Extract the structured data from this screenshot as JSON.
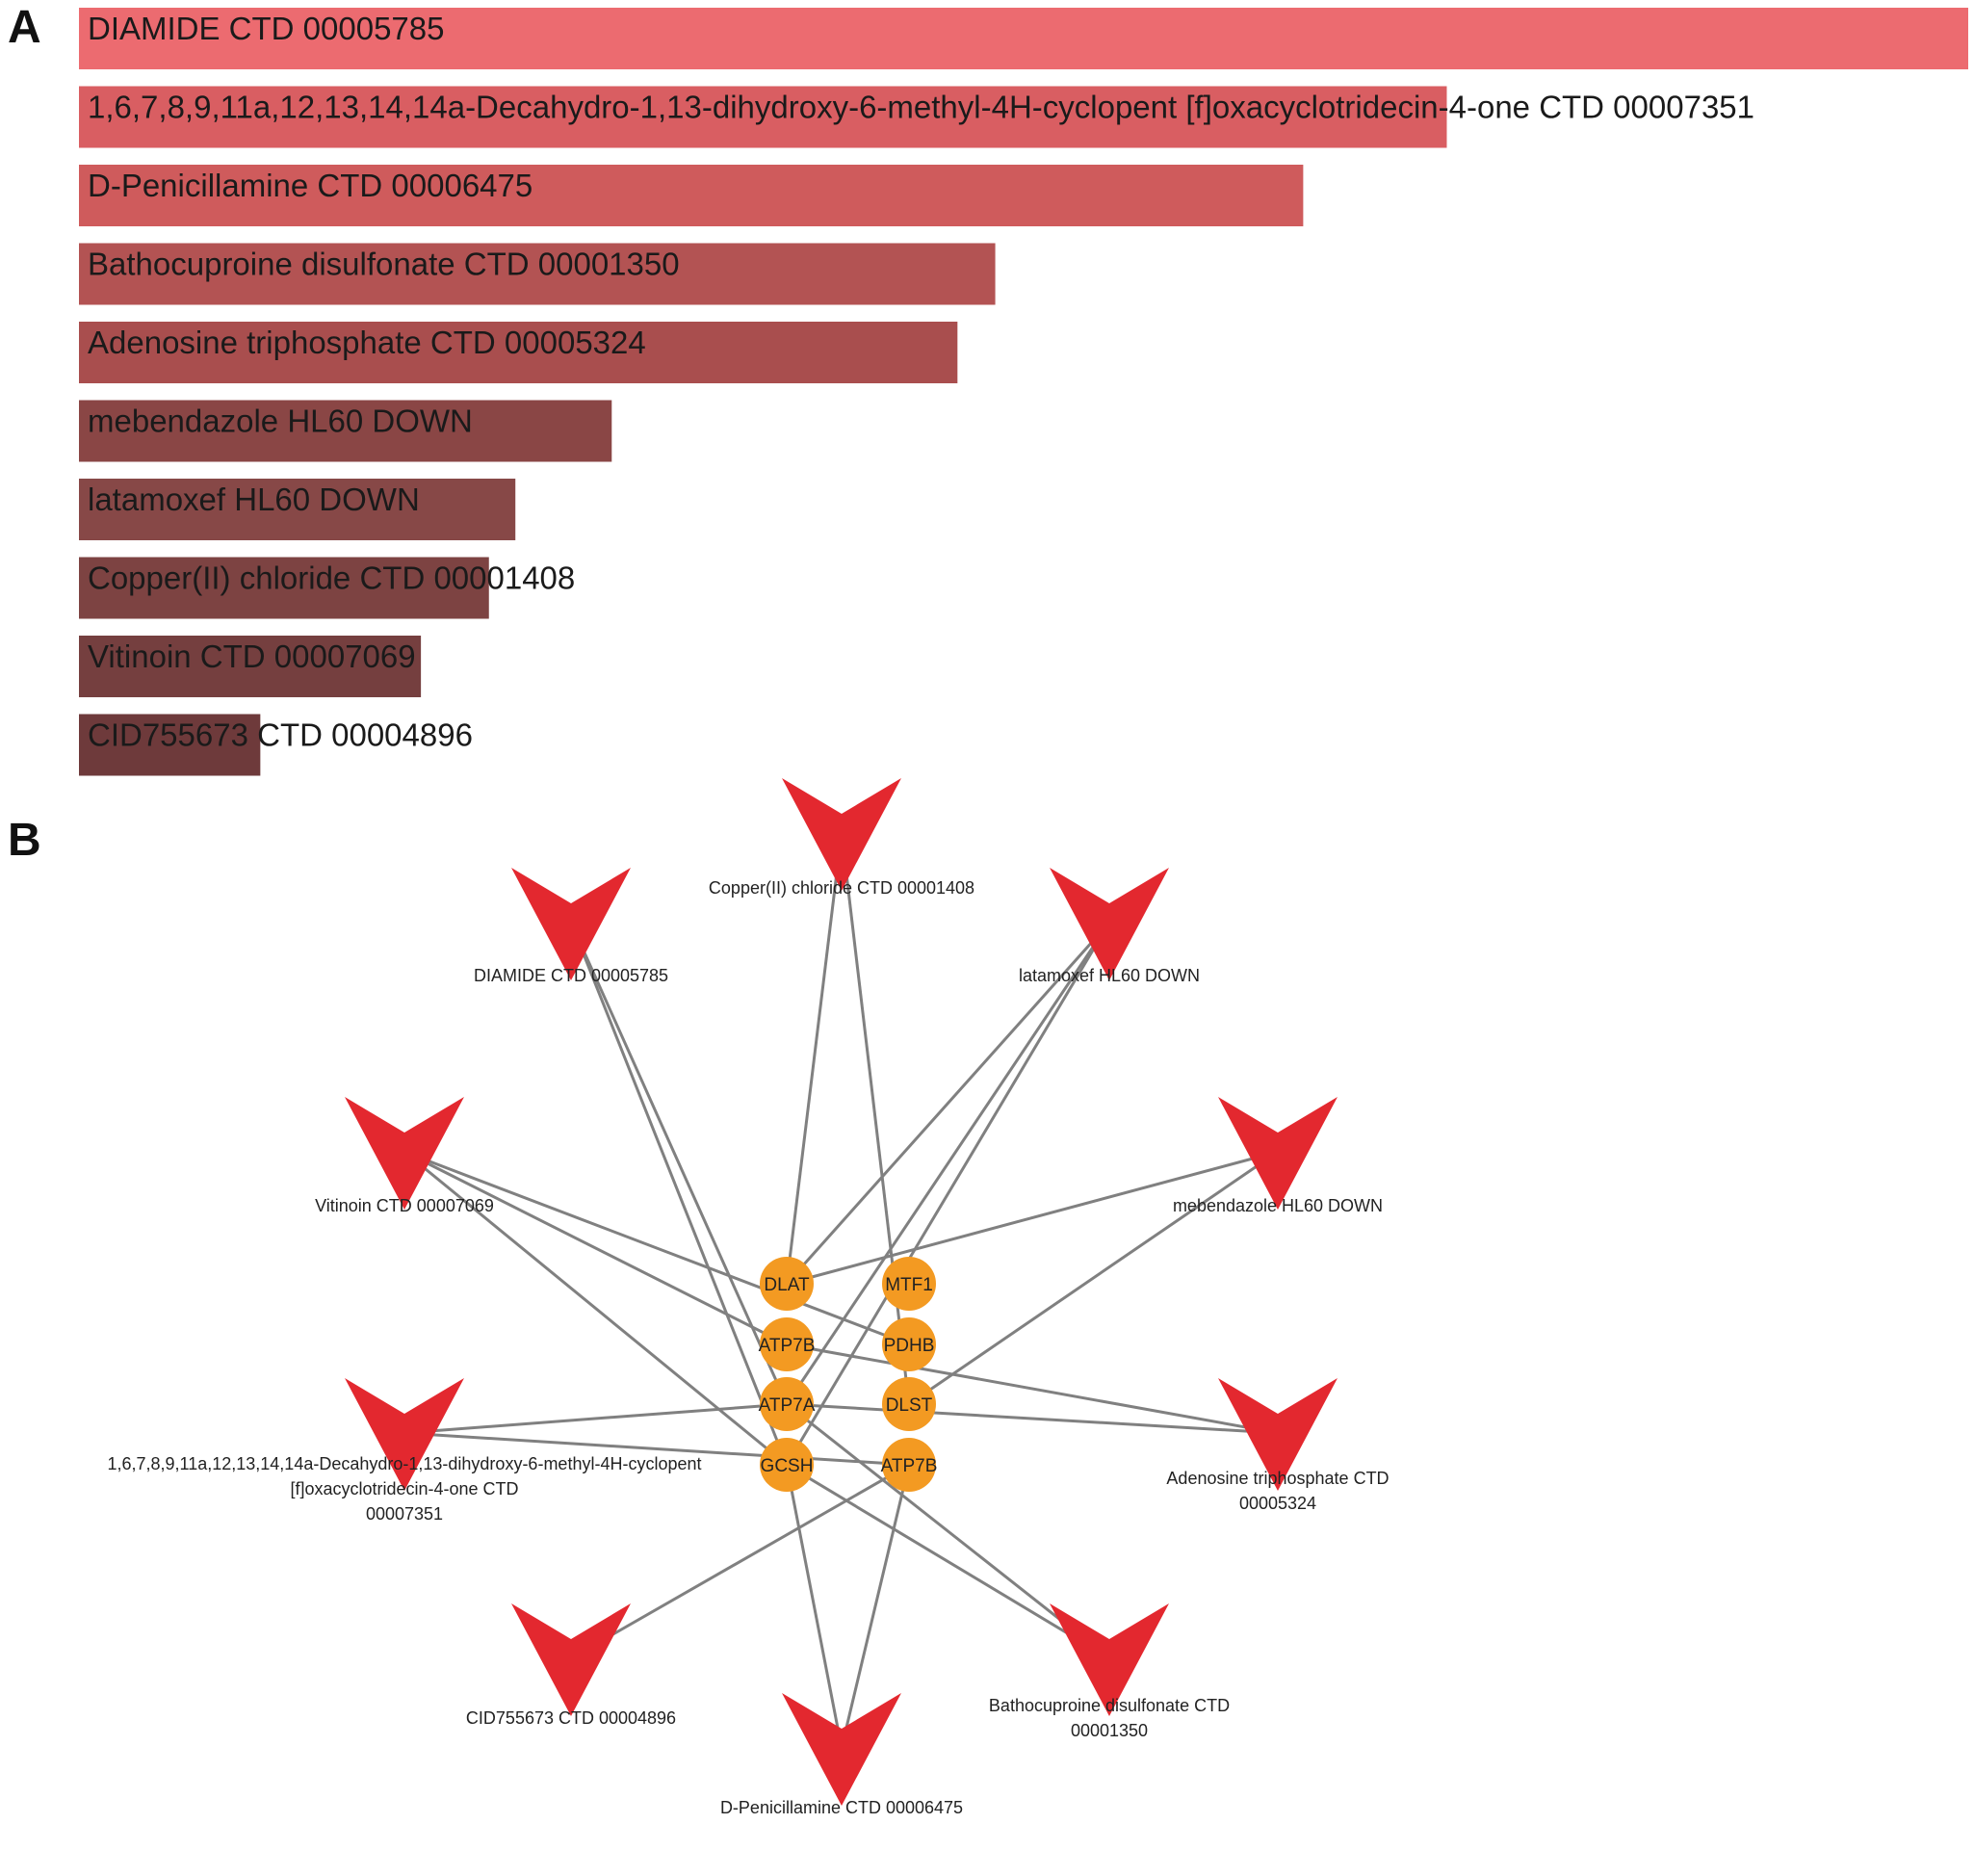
{
  "panels": {
    "a": "A",
    "b": "B"
  },
  "colors": {
    "edge": "#808080",
    "drug": "#e3282f",
    "gene": "#f39a22",
    "bar_high": "#ec6b70",
    "bar_low": "#6e3a3b"
  },
  "chart_data": [
    {
      "type": "bar",
      "orientation": "horizontal",
      "categories": [
        "DIAMIDE CTD 00005785",
        "1,6,7,8,9,11a,12,13,14,14a-Decahydro-1,13-dihydroxy-6-methyl-4H-cyclopent [f]oxacyclotridecin-4-one CTD 00007351",
        "D-Penicillamine CTD 00006475",
        "Bathocuproine disulfonate CTD 00001350",
        "Adenosine triphosphate CTD 00005324",
        "mebendazole HL60 DOWN",
        "latamoxef HL60 DOWN",
        "Copper(II) chloride CTD 00001408",
        "Vitinoin CTD 00007069",
        "CID755673 CTD 00004896"
      ],
      "values": [
        100,
        72.4,
        64.8,
        48.5,
        46.5,
        28.2,
        23.1,
        21.7,
        18.1,
        9.6
      ],
      "bar_colors": [
        "#ec6b70",
        "#d95e62",
        "#cf5b5c",
        "#b35353",
        "#a94e4e",
        "#8a4645",
        "#874847",
        "#7d4342",
        "#753f3f",
        "#6e3a3b"
      ],
      "xlim": [
        0,
        100
      ],
      "title": "",
      "xlabel": "",
      "ylabel": ""
    },
    {
      "type": "network",
      "genes": [
        {
          "id": "DLAT",
          "label": "DLAT"
        },
        {
          "id": "MTF1",
          "label": "MTF1"
        },
        {
          "id": "ATP7B_a",
          "label": "ATP7B"
        },
        {
          "id": "PDHB",
          "label": "PDHB"
        },
        {
          "id": "ATP7A",
          "label": "ATP7A"
        },
        {
          "id": "DLST",
          "label": "DLST"
        },
        {
          "id": "GCSH",
          "label": "GCSH"
        },
        {
          "id": "ATP7B_b",
          "label": "ATP7B"
        }
      ],
      "drugs": [
        {
          "id": "cu",
          "label_lines": [
            "Copper(II) chloride CTD 00001408"
          ]
        },
        {
          "id": "diamide",
          "label_lines": [
            "DIAMIDE CTD 00005785"
          ]
        },
        {
          "id": "latamoxef",
          "label_lines": [
            "latamoxef HL60 DOWN"
          ]
        },
        {
          "id": "vitinoin",
          "label_lines": [
            "Vitinoin CTD 00007069"
          ]
        },
        {
          "id": "mebendazole",
          "label_lines": [
            "mebendazole HL60 DOWN"
          ]
        },
        {
          "id": "decahydro",
          "label_lines": [
            "1,6,7,8,9,11a,12,13,14,14a-Decahydro-1,13-dihydroxy-6-methyl-4H-cyclopent",
            "[f]oxacyclotridecin-4-one CTD",
            "00007351"
          ]
        },
        {
          "id": "atp",
          "label_lines": [
            "Adenosine triphosphate CTD",
            "00005324"
          ]
        },
        {
          "id": "cid",
          "label_lines": [
            "CID755673 CTD 00004896"
          ]
        },
        {
          "id": "batho",
          "label_lines": [
            "Bathocuproine disulfonate CTD",
            "00001350"
          ]
        },
        {
          "id": "penicillamine",
          "label_lines": [
            "D-Penicillamine CTD 00006475"
          ]
        }
      ],
      "edges": [
        [
          "cu",
          "DLAT"
        ],
        [
          "cu",
          "DLST"
        ],
        [
          "diamide",
          "ATP7A"
        ],
        [
          "diamide",
          "GCSH"
        ],
        [
          "latamoxef",
          "DLAT"
        ],
        [
          "latamoxef",
          "ATP7A"
        ],
        [
          "latamoxef",
          "GCSH"
        ],
        [
          "vitinoin",
          "ATP7B_a"
        ],
        [
          "vitinoin",
          "PDHB"
        ],
        [
          "vitinoin",
          "GCSH"
        ],
        [
          "mebendazole",
          "DLAT"
        ],
        [
          "mebendazole",
          "DLST"
        ],
        [
          "decahydro",
          "ATP7A"
        ],
        [
          "decahydro",
          "ATP7B_b"
        ],
        [
          "atp",
          "ATP7B_a"
        ],
        [
          "atp",
          "ATP7A"
        ],
        [
          "cid",
          "ATP7B_b"
        ],
        [
          "batho",
          "ATP7A"
        ],
        [
          "batho",
          "GCSH"
        ],
        [
          "penicillamine",
          "GCSH"
        ],
        [
          "penicillamine",
          "ATP7B_b"
        ]
      ]
    }
  ]
}
